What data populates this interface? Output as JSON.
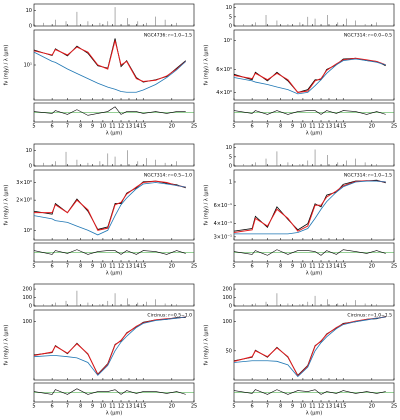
{
  "chart_data": [
    {
      "type": "spectrum",
      "annotation": "NGC4736: r=1.0−1.5",
      "xlabel": "λ (μm)",
      "ylabel": "fν (mJy) / λ (μm)",
      "xlog": true,
      "xlim": [
        5,
        25
      ],
      "xticks": [
        5,
        6,
        7,
        8,
        9,
        10,
        11,
        12,
        13,
        14,
        15,
        20,
        25
      ],
      "x": [
        5,
        6,
        6.2,
        7,
        7.7,
        8.6,
        9.5,
        10.5,
        11.3,
        12,
        12.7,
        14,
        15,
        17,
        19,
        21,
        23
      ],
      "ylog": true,
      "ylim": [
        4,
        25
      ],
      "yticks": [
        {
          "value": 10,
          "label": "10¹"
        }
      ],
      "series": [
        {
          "color": "#000000",
          "values": [
            14.8,
            12.8,
            15.3,
            12.7,
            16.4,
            13.6,
            9.8,
            9.2,
            20,
            9.6,
            11.2,
            7.2,
            6.4,
            6.8,
            7.4,
            9.2,
            11.2
          ]
        },
        {
          "color": "#e41a1c",
          "values": [
            14.5,
            13,
            15,
            13,
            16,
            14,
            10,
            9,
            19,
            10,
            11,
            7,
            6.5,
            6.7,
            7.5,
            9,
            11
          ]
        },
        {
          "color": "#1f77b4",
          "values": [
            14,
            11,
            10.7,
            9,
            8,
            7,
            6.2,
            5.6,
            5.3,
            5,
            4.9,
            4.9,
            5.2,
            6,
            7.2,
            8.8,
            11
          ]
        }
      ],
      "lines": {
        "x": [
          5.5,
          6.2,
          6.9,
          7.7,
          8.6,
          9.7,
          10.5,
          11.3,
          12.8,
          14.2,
          15.5,
          17,
          18.7,
          21
        ],
        "values": [
          2,
          4,
          3,
          9,
          3,
          2,
          3,
          12,
          5,
          3,
          2,
          6,
          4,
          2
        ],
        "ylim": [
          0,
          14
        ],
        "yticks": [
          0,
          10
        ]
      },
      "residual": {
        "ylim": [
          -1,
          1
        ],
        "series": [
          {
            "color": "#000000",
            "values": [
              0.1,
              -0.1,
              0.2,
              -0.2,
              0.3,
              -0.3,
              -0.1,
              0.1,
              0.6,
              -0.2,
              0.1,
              0.1,
              -0.1,
              0.1,
              -0.1,
              0.1,
              0.1
            ]
          }
        ]
      }
    },
    {
      "type": "spectrum",
      "annotation": "NGC7314: r=0.0−0.5",
      "xlabel": "λ (μm)",
      "ylabel": "fν (mJy) / λ (μm)",
      "xlog": true,
      "xlim": [
        5,
        25
      ],
      "xticks": [
        5,
        6,
        7,
        8,
        9,
        10,
        11,
        12,
        13,
        14,
        15,
        20,
        25
      ],
      "x": [
        5,
        6,
        6.2,
        7,
        7.7,
        8.6,
        9.5,
        10.5,
        11.3,
        12,
        12.7,
        14,
        15,
        17,
        19,
        21,
        23
      ],
      "ylog": true,
      "ylim": [
        3.5,
        12
      ],
      "yticks": [
        {
          "value": 4,
          "label": "4×10⁰"
        },
        {
          "value": 6,
          "label": "6×10⁰"
        },
        {
          "value": 10,
          "label": "10¹"
        }
      ],
      "series": [
        {
          "color": "#000000",
          "values": [
            5.5,
            5.0,
            5.7,
            4.9,
            5.7,
            4.9,
            4.0,
            4.2,
            5.0,
            5.0,
            6.0,
            6.5,
            7.2,
            7.3,
            7.0,
            6.9,
            6.4
          ]
        },
        {
          "color": "#e41a1c",
          "values": [
            5.4,
            5.1,
            5.6,
            5,
            5.6,
            5,
            4,
            4.1,
            4.9,
            5.1,
            5.9,
            6.6,
            7.1,
            7.3,
            7.1,
            6.9,
            6.5
          ]
        },
        {
          "color": "#1f77b4",
          "values": [
            5.2,
            4.9,
            4.8,
            4.6,
            4.4,
            4.2,
            3.9,
            4,
            4.5,
            5,
            5.6,
            6.5,
            7,
            7.2,
            7,
            6.8,
            6.5
          ]
        }
      ],
      "lines": {
        "x": [
          5.5,
          6.2,
          6.9,
          7.7,
          8.6,
          9.7,
          10.5,
          11.3,
          12.8,
          14.2,
          15.5,
          17,
          18.7,
          21
        ],
        "values": [
          1,
          2,
          6,
          3,
          1,
          2,
          5,
          4,
          6,
          2,
          4,
          3,
          1,
          2
        ],
        "ylim": [
          0,
          12
        ],
        "yticks": [
          0,
          5,
          10
        ]
      },
      "residual": {
        "ylim": [
          -1,
          1
        ],
        "series": [
          {
            "color": "#000000",
            "values": [
              0.2,
              -0.1,
              0.2,
              -0.2,
              0.2,
              -0.2,
              0.1,
              0.2,
              0.2,
              -0.2,
              0.2,
              -0.1,
              0.2,
              0.1,
              -0.2,
              0.1,
              -0.2
            ]
          }
        ]
      }
    },
    {
      "type": "spectrum",
      "annotation": "NGC7314: r=0.5−1.0",
      "xlabel": "λ (μm)",
      "ylabel": "fν (mJy) / λ (μm)",
      "xlog": true,
      "xlim": [
        5,
        25
      ],
      "xticks": [
        5,
        6,
        7,
        8,
        9,
        10,
        11,
        12,
        13,
        14,
        15,
        20,
        25
      ],
      "x": [
        5,
        6,
        6.2,
        7,
        7.7,
        8.6,
        9.5,
        10.5,
        11.3,
        12,
        12.7,
        14,
        15,
        17,
        19,
        21,
        23
      ],
      "ylog": true,
      "ylim": [
        0.8,
        4
      ],
      "yticks": [
        {
          "value": 1,
          "label": "10⁰"
        },
        {
          "value": 2,
          "label": "2×10⁰"
        },
        {
          "value": 3,
          "label": "3×10⁰"
        }
      ],
      "series": [
        {
          "color": "#000000",
          "values": [
            1.55,
            1.45,
            1.85,
            1.5,
            2.05,
            1.55,
            1.02,
            1.08,
            1.85,
            1.85,
            2.35,
            2.65,
            3.05,
            3.1,
            2.95,
            2.85,
            2.65
          ]
        },
        {
          "color": "#e41a1c",
          "values": [
            1.5,
            1.5,
            1.8,
            1.5,
            2,
            1.6,
            1,
            1.05,
            1.8,
            1.9,
            2.3,
            2.7,
            3,
            3.1,
            3,
            2.8,
            2.7
          ]
        },
        {
          "color": "#1f77b4",
          "values": [
            1.4,
            1.3,
            1.25,
            1.2,
            1.1,
            1,
            0.9,
            1,
            1.4,
            1.8,
            2.1,
            2.6,
            2.9,
            3,
            2.9,
            2.8,
            2.7
          ]
        }
      ],
      "lines": {
        "x": [
          5.5,
          6.2,
          6.9,
          7.7,
          8.6,
          9.7,
          10.5,
          11.3,
          12.8,
          14.2,
          15.5,
          17,
          18.7,
          21
        ],
        "values": [
          2,
          3,
          9,
          4,
          2,
          3,
          8,
          6,
          10,
          3,
          5,
          4,
          2,
          3
        ],
        "ylim": [
          0,
          14
        ],
        "yticks": [
          0,
          10
        ]
      },
      "residual": {
        "ylim": [
          -1,
          1
        ],
        "series": [
          {
            "color": "#000000",
            "values": [
              0.2,
              -0.2,
              0.2,
              -0.1,
              0.3,
              -0.2,
              0.1,
              0.2,
              0.2,
              -0.2,
              0.2,
              -0.2,
              0.2,
              0.1,
              -0.2,
              0.2,
              -0.1
            ]
          }
        ]
      }
    },
    {
      "type": "spectrum",
      "annotation": "NGC7314: r=1.0−1.5",
      "xlabel": "λ (μm)",
      "ylabel": "fν (mJy) / λ (μm)",
      "xlog": true,
      "xlim": [
        5,
        25
      ],
      "xticks": [
        5,
        6,
        7,
        8,
        9,
        10,
        11,
        12,
        13,
        14,
        15,
        20,
        25
      ],
      "x": [
        5,
        6,
        6.2,
        7,
        7.7,
        8.6,
        9.5,
        10.5,
        11.3,
        12,
        12.7,
        14,
        15,
        17,
        19,
        21,
        23
      ],
      "ylog": true,
      "ylim": [
        0.28,
        1.3
      ],
      "yticks": [
        {
          "value": 0.3,
          "label": "3×10⁻¹"
        },
        {
          "value": 0.4,
          "label": "4×10⁻¹"
        },
        {
          "value": 0.6,
          "label": "6×10⁻¹"
        },
        1
      ],
      "series": [
        {
          "color": "#000000",
          "values": [
            0.34,
            0.36,
            0.47,
            0.37,
            0.58,
            0.44,
            0.35,
            0.4,
            0.62,
            0.58,
            0.75,
            0.8,
            0.95,
            1.02,
            1.02,
            1.04,
            0.98
          ]
        },
        {
          "color": "#e41a1c",
          "values": [
            0.33,
            0.35,
            0.45,
            0.38,
            0.55,
            0.45,
            0.34,
            0.38,
            0.6,
            0.6,
            0.72,
            0.82,
            0.92,
            1.01,
            1.03,
            1.02,
            1
          ]
        },
        {
          "color": "#1f77b4",
          "values": [
            0.32,
            0.32,
            0.32,
            0.32,
            0.32,
            0.32,
            0.33,
            0.36,
            0.45,
            0.55,
            0.65,
            0.8,
            0.9,
            1,
            1.02,
            1.02,
            1
          ]
        }
      ],
      "lines": {
        "x": [
          5.5,
          6.2,
          6.9,
          7.7,
          8.6,
          9.7,
          10.5,
          11.3,
          12.8,
          14.2,
          15.5,
          17,
          18.7,
          21
        ],
        "values": [
          1,
          2,
          4,
          8,
          2,
          1,
          3,
          9,
          6,
          2,
          3,
          4,
          2,
          1
        ],
        "ylim": [
          0,
          12
        ],
        "yticks": [
          0,
          5,
          10
        ]
      },
      "residual": {
        "ylim": [
          -1,
          1
        ],
        "series": [
          {
            "color": "#000000",
            "values": [
              0.1,
              -0.2,
              0.2,
              -0.3,
              0.3,
              -0.2,
              0.2,
              0.2,
              0.1,
              -0.3,
              0.2,
              -0.2,
              0.3,
              0.1,
              -0.1,
              0.2,
              -0.1
            ]
          }
        ]
      }
    },
    {
      "type": "spectrum",
      "annotation": "Circinus: r=0.5−1.0",
      "xlabel": "λ (μm)",
      "ylabel": "fν (mJy) / λ (μm)",
      "xlog": true,
      "xlim": [
        5,
        25
      ],
      "xticks": [
        5,
        6,
        7,
        8,
        9,
        10,
        11,
        12,
        13,
        14,
        15,
        20,
        25
      ],
      "x": [
        5,
        6,
        6.2,
        7,
        7.7,
        8.6,
        9.5,
        10.5,
        11.3,
        12,
        12.7,
        14,
        15,
        17,
        19,
        21,
        23
      ],
      "ylog": false,
      "ylim": [
        0,
        120
      ],
      "yticks": [
        100
      ],
      "series": [
        {
          "color": "#000000",
          "values": [
            43,
            47,
            59,
            45,
            63,
            44,
            10,
            28,
            61,
            67,
            81,
            91,
            99,
            103,
            104,
            107,
            107
          ]
        },
        {
          "color": "#e41a1c",
          "values": [
            42,
            48,
            58,
            46,
            62,
            45,
            9,
            27,
            60,
            68,
            80,
            92,
            98,
            103,
            105,
            106,
            108
          ]
        },
        {
          "color": "#1f77b4",
          "values": [
            40,
            42,
            42,
            40,
            38,
            30,
            8,
            25,
            50,
            65,
            75,
            90,
            97,
            102,
            104,
            106,
            108
          ]
        }
      ],
      "lines": {
        "x": [
          5.5,
          6.2,
          6.9,
          7.7,
          8.6,
          9.7,
          10.5,
          11.3,
          12.8,
          14.2,
          15.5,
          17,
          18.7,
          21
        ],
        "values": [
          20,
          40,
          60,
          180,
          40,
          20,
          60,
          150,
          90,
          40,
          50,
          80,
          30,
          20
        ],
        "ylim": [
          0,
          260
        ],
        "yticks": [
          0,
          100,
          200
        ]
      },
      "residual": {
        "ylim": [
          -1,
          1
        ],
        "series": [
          {
            "color": "#000000",
            "values": [
              0.1,
              -0.2,
              0.3,
              -0.2,
              0.4,
              -0.2,
              0.1,
              0.1,
              0.3,
              -0.2,
              0.2,
              -0.1,
              0.1,
              0.1,
              -0.1,
              0.1,
              -0.2
            ]
          }
        ]
      }
    },
    {
      "type": "spectrum",
      "annotation": "Circinus: r=1.0−1.5",
      "xlabel": "λ (μm)",
      "ylabel": "fν (mJy) / λ (μm)",
      "xlog": true,
      "xlim": [
        5,
        25
      ],
      "xticks": [
        5,
        6,
        7,
        8,
        9,
        10,
        11,
        12,
        13,
        14,
        15,
        20,
        25
      ],
      "x": [
        5,
        6,
        6.2,
        7,
        7.7,
        8.6,
        9.5,
        10.5,
        11.3,
        12,
        12.7,
        14,
        15,
        17,
        19,
        21,
        23
      ],
      "ylog": false,
      "ylim": [
        0,
        120
      ],
      "yticks": [
        50,
        100
      ],
      "series": [
        {
          "color": "#000000",
          "values": [
            33,
            39,
            51,
            39,
            56,
            39,
            8,
            25,
            59,
            66,
            79,
            89,
            97,
            100,
            104,
            105,
            109
          ]
        },
        {
          "color": "#e41a1c",
          "values": [
            32,
            40,
            50,
            40,
            55,
            40,
            7,
            24,
            58,
            67,
            78,
            90,
            96,
            101,
            104,
            106,
            108
          ]
        },
        {
          "color": "#1f77b4",
          "values": [
            30,
            33,
            33,
            33,
            32,
            26,
            6,
            22,
            50,
            64,
            74,
            88,
            95,
            100,
            103,
            106,
            108
          ]
        }
      ],
      "lines": {
        "x": [
          5.5,
          6.2,
          6.9,
          7.7,
          8.6,
          9.7,
          10.5,
          11.3,
          12.8,
          14.2,
          15.5,
          17,
          18.7,
          21
        ],
        "values": [
          20,
          30,
          50,
          150,
          30,
          20,
          50,
          120,
          80,
          30,
          40,
          70,
          30,
          20
        ],
        "ylim": [
          0,
          260
        ],
        "yticks": [
          0,
          100,
          200
        ]
      },
      "residual": {
        "ylim": [
          -1,
          1
        ],
        "series": [
          {
            "color": "#000000",
            "values": [
              0.2,
              -0.1,
              0.3,
              -0.2,
              0.3,
              -0.2,
              0.2,
              0.1,
              0.3,
              -0.2,
              0.1,
              -0.1,
              0.2,
              -0.1,
              0.1,
              -0.1,
              0.1
            ]
          }
        ]
      }
    }
  ]
}
